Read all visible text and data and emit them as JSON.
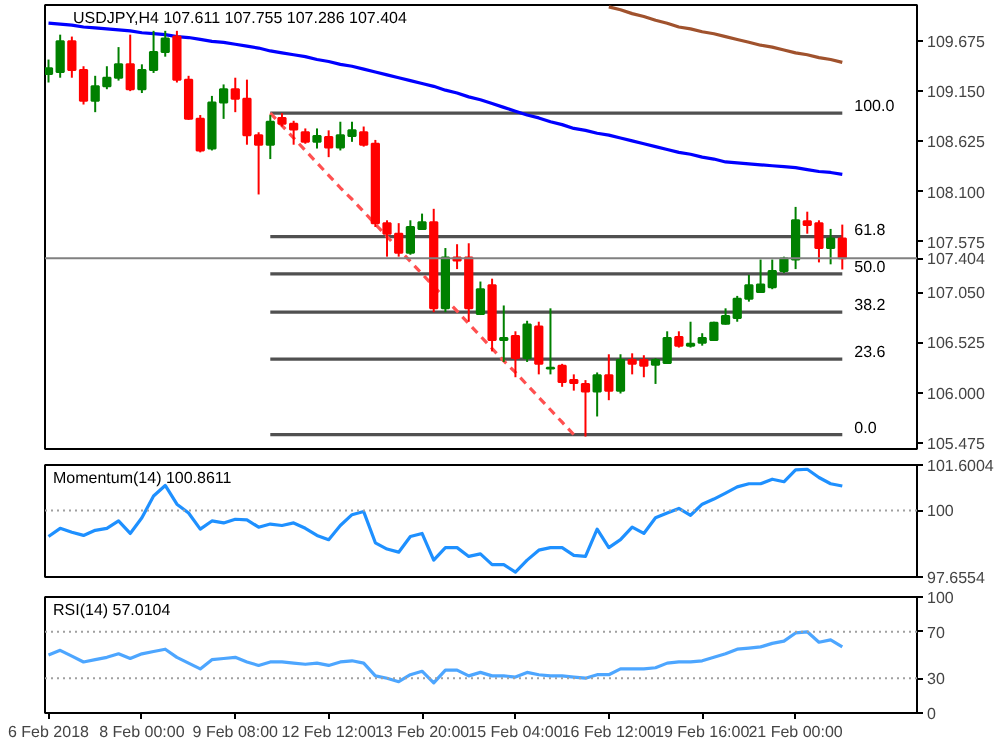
{
  "chart_data": [
    {
      "type": "candlestick",
      "title": "USDJPY,H4  107.611 107.755 107.286 107.404",
      "tick_labels": "y",
      "categories": [
        null,
        null,
        null,
        null,
        null,
        null,
        null,
        null,
        null,
        null,
        null,
        null,
        null,
        null,
        null,
        null,
        null,
        null,
        null,
        null,
        null,
        null,
        null,
        null,
        null,
        null,
        null,
        null,
        null,
        null,
        null,
        null,
        null,
        null,
        null,
        null,
        null,
        null,
        null,
        null,
        null,
        null,
        null,
        null,
        null,
        null,
        null,
        null,
        null,
        null,
        null,
        null,
        null,
        null,
        null,
        null,
        null,
        null,
        null,
        null,
        null,
        null,
        null,
        null,
        null,
        null,
        null,
        null,
        null
      ],
      "ohlc": [
        [
          109.33,
          109.48,
          109.24,
          109.39
        ],
        [
          109.35,
          109.74,
          109.29,
          109.67
        ],
        [
          109.67,
          109.72,
          109.29,
          109.37
        ],
        [
          109.37,
          109.41,
          109.01,
          109.05
        ],
        [
          109.05,
          109.31,
          108.93,
          109.2
        ],
        [
          109.2,
          109.41,
          109.17,
          109.29
        ],
        [
          109.29,
          109.61,
          109.26,
          109.43
        ],
        [
          109.43,
          109.74,
          109.15,
          109.17
        ],
        [
          109.17,
          109.43,
          109.13,
          109.37
        ],
        [
          109.37,
          109.78,
          109.34,
          109.56
        ],
        [
          109.56,
          109.78,
          109.51,
          109.7
        ],
        [
          109.72,
          109.78,
          109.24,
          109.27
        ],
        [
          109.27,
          109.31,
          108.85,
          108.86
        ],
        [
          108.86,
          108.9,
          108.51,
          108.53
        ],
        [
          108.55,
          109.1,
          108.53,
          109.03
        ],
        [
          109.03,
          109.22,
          108.86,
          109.17
        ],
        [
          109.17,
          109.29,
          108.93,
          109.07
        ],
        [
          109.07,
          109.27,
          108.59,
          108.69
        ],
        [
          108.69,
          108.72,
          108.07,
          108.59
        ],
        [
          108.59,
          108.9,
          108.44,
          108.83
        ],
        [
          108.87,
          108.92,
          108.78,
          108.81
        ],
        [
          108.81,
          108.84,
          108.59,
          108.75
        ],
        [
          108.72,
          108.76,
          108.6,
          108.62
        ],
        [
          108.62,
          108.76,
          108.55,
          108.68
        ],
        [
          108.67,
          108.74,
          108.46,
          108.56
        ],
        [
          108.56,
          108.83,
          108.53,
          108.69
        ],
        [
          108.68,
          108.83,
          108.62,
          108.74
        ],
        [
          108.72,
          108.78,
          108.57,
          108.59
        ],
        [
          108.6,
          108.64,
          107.73,
          107.77
        ],
        [
          107.77,
          107.8,
          107.42,
          107.66
        ],
        [
          107.66,
          107.77,
          107.42,
          107.46
        ],
        [
          107.46,
          107.8,
          107.44,
          107.73
        ],
        [
          107.71,
          107.87,
          107.7,
          107.78
        ],
        [
          107.78,
          107.92,
          106.84,
          106.88
        ],
        [
          106.88,
          107.51,
          106.84,
          107.41
        ],
        [
          107.41,
          107.55,
          107.29,
          107.38
        ],
        [
          107.41,
          107.56,
          106.74,
          106.88
        ],
        [
          106.82,
          107.16,
          106.81,
          107.08
        ],
        [
          107.12,
          107.19,
          106.43,
          106.55
        ],
        [
          106.55,
          106.91,
          106.32,
          106.57
        ],
        [
          106.59,
          106.64,
          106.16,
          106.36
        ],
        [
          106.36,
          106.75,
          106.32,
          106.71
        ],
        [
          106.69,
          106.74,
          106.19,
          106.3
        ],
        [
          106.25,
          106.88,
          106.19,
          106.26
        ],
        [
          106.28,
          106.3,
          106.06,
          106.11
        ],
        [
          106.13,
          106.19,
          106.02,
          106.1
        ],
        [
          106.09,
          106.13,
          105.54,
          106.01
        ],
        [
          106.01,
          106.21,
          105.75,
          106.18
        ],
        [
          106.18,
          106.4,
          105.92,
          106.02
        ],
        [
          106.02,
          106.4,
          105.99,
          106.34
        ],
        [
          106.34,
          106.41,
          106.19,
          106.3
        ],
        [
          106.34,
          106.39,
          106.16,
          106.28
        ],
        [
          106.29,
          106.36,
          106.09,
          106.34
        ],
        [
          106.31,
          106.64,
          106.3,
          106.57
        ],
        [
          106.58,
          106.64,
          106.47,
          106.49
        ],
        [
          106.49,
          106.74,
          106.47,
          106.51
        ],
        [
          106.52,
          106.62,
          106.49,
          106.57
        ],
        [
          106.55,
          106.74,
          106.54,
          106.73
        ],
        [
          106.72,
          106.88,
          106.71,
          106.8
        ],
        [
          106.78,
          107.01,
          106.74,
          106.98
        ],
        [
          106.98,
          107.23,
          106.95,
          107.12
        ],
        [
          107.05,
          107.39,
          107.05,
          107.13
        ],
        [
          107.1,
          107.39,
          107.08,
          107.27
        ],
        [
          107.27,
          107.42,
          107.25,
          107.4
        ],
        [
          107.39,
          107.94,
          107.29,
          107.8
        ],
        [
          107.79,
          107.89,
          107.66,
          107.75
        ],
        [
          107.77,
          107.8,
          107.36,
          107.51
        ],
        [
          107.51,
          107.71,
          107.34,
          107.61
        ],
        [
          107.611,
          107.755,
          107.286,
          107.404
        ]
      ],
      "colors": [
        "#008000",
        "#008000",
        "#ff0000",
        "#ff0000",
        "#008000",
        "#008000",
        "#008000",
        "#ff0000",
        "#008000",
        "#008000",
        "#008000",
        "#ff0000",
        "#ff0000",
        "#ff0000",
        "#008000",
        "#008000",
        "#ff0000",
        "#ff0000",
        "#ff0000",
        "#008000",
        "#ff0000",
        "#ff0000",
        "#ff0000",
        "#008000",
        "#ff0000",
        "#008000",
        "#008000",
        "#ff0000",
        "#ff0000",
        "#ff0000",
        "#ff0000",
        "#008000",
        "#008000",
        "#ff0000",
        "#008000",
        "#ff0000",
        "#ff0000",
        "#008000",
        "#ff0000",
        "#008000",
        "#ff0000",
        "#008000",
        "#ff0000",
        "#008000",
        "#ff0000",
        "#ff0000",
        "#ff0000",
        "#008000",
        "#ff0000",
        "#008000",
        "#ff0000",
        "#ff0000",
        "#008000",
        "#008000",
        "#ff0000",
        "#008000",
        "#008000",
        "#008000",
        "#008000",
        "#008000",
        "#008000",
        "#008000",
        "#008000",
        "#008000",
        "#008000",
        "#ff0000",
        "#ff0000",
        "#008000",
        "#ff0000"
      ],
      "series": [
        {
          "type": "line",
          "name": "100.0",
          "color": "#505050",
          "values": [
            null,
            null,
            null,
            null,
            null,
            null,
            null,
            null,
            null,
            null,
            null,
            null,
            null,
            null,
            null,
            null,
            null,
            null,
            null,
            108.92,
            108.92,
            108.92,
            108.92,
            108.92,
            108.92,
            108.92,
            108.92,
            108.92,
            108.92,
            108.92,
            108.92,
            108.92,
            108.92,
            108.92,
            108.92,
            108.92,
            108.92,
            108.92,
            108.92,
            108.92,
            108.92,
            108.92,
            108.92,
            108.92,
            108.92,
            108.92,
            108.92,
            108.92,
            108.92,
            108.92,
            108.92,
            108.92,
            108.92,
            108.92,
            108.92,
            108.92,
            108.92,
            108.92,
            108.92,
            108.92,
            108.92,
            108.92,
            108.92,
            108.92,
            108.92,
            108.92,
            108.92,
            108.92,
            108.92
          ]
        },
        {
          "type": "line",
          "name": "61.8",
          "color": "#505050",
          "values": [
            null,
            null,
            null,
            null,
            null,
            null,
            null,
            null,
            null,
            null,
            null,
            null,
            null,
            null,
            null,
            null,
            null,
            null,
            null,
            107.63,
            107.63,
            107.63,
            107.63,
            107.63,
            107.63,
            107.63,
            107.63,
            107.63,
            107.63,
            107.63,
            107.63,
            107.63,
            107.63,
            107.63,
            107.63,
            107.63,
            107.63,
            107.63,
            107.63,
            107.63,
            107.63,
            107.63,
            107.63,
            107.63,
            107.63,
            107.63,
            107.63,
            107.63,
            107.63,
            107.63,
            107.63,
            107.63,
            107.63,
            107.63,
            107.63,
            107.63,
            107.63,
            107.63,
            107.63,
            107.63,
            107.63,
            107.63,
            107.63,
            107.63,
            107.63,
            107.63,
            107.63,
            107.63,
            107.63
          ]
        },
        {
          "type": "line",
          "name": "50.0",
          "color": "#505050",
          "values": [
            null,
            null,
            null,
            null,
            null,
            null,
            null,
            null,
            null,
            null,
            null,
            null,
            null,
            null,
            null,
            null,
            null,
            null,
            null,
            107.24,
            107.24,
            107.24,
            107.24,
            107.24,
            107.24,
            107.24,
            107.24,
            107.24,
            107.24,
            107.24,
            107.24,
            107.24,
            107.24,
            107.24,
            107.24,
            107.24,
            107.24,
            107.24,
            107.24,
            107.24,
            107.24,
            107.24,
            107.24,
            107.24,
            107.24,
            107.24,
            107.24,
            107.24,
            107.24,
            107.24,
            107.24,
            107.24,
            107.24,
            107.24,
            107.24,
            107.24,
            107.24,
            107.24,
            107.24,
            107.24,
            107.24,
            107.24,
            107.24,
            107.24,
            107.24,
            107.24,
            107.24,
            107.24,
            107.24
          ]
        },
        {
          "type": "line",
          "name": "38.2",
          "color": "#505050",
          "values": [
            null,
            null,
            null,
            null,
            null,
            null,
            null,
            null,
            null,
            null,
            null,
            null,
            null,
            null,
            null,
            null,
            null,
            null,
            null,
            106.84,
            106.84,
            106.84,
            106.84,
            106.84,
            106.84,
            106.84,
            106.84,
            106.84,
            106.84,
            106.84,
            106.84,
            106.84,
            106.84,
            106.84,
            106.84,
            106.84,
            106.84,
            106.84,
            106.84,
            106.84,
            106.84,
            106.84,
            106.84,
            106.84,
            106.84,
            106.84,
            106.84,
            106.84,
            106.84,
            106.84,
            106.84,
            106.84,
            106.84,
            106.84,
            106.84,
            106.84,
            106.84,
            106.84,
            106.84,
            106.84,
            106.84,
            106.84,
            106.84,
            106.84,
            106.84,
            106.84,
            106.84,
            106.84,
            106.84
          ]
        },
        {
          "type": "line",
          "name": "23.6",
          "color": "#505050",
          "values": [
            null,
            null,
            null,
            null,
            null,
            null,
            null,
            null,
            null,
            null,
            null,
            null,
            null,
            null,
            null,
            null,
            null,
            null,
            null,
            106.35,
            106.35,
            106.35,
            106.35,
            106.35,
            106.35,
            106.35,
            106.35,
            106.35,
            106.35,
            106.35,
            106.35,
            106.35,
            106.35,
            106.35,
            106.35,
            106.35,
            106.35,
            106.35,
            106.35,
            106.35,
            106.35,
            106.35,
            106.35,
            106.35,
            106.35,
            106.35,
            106.35,
            106.35,
            106.35,
            106.35,
            106.35,
            106.35,
            106.35,
            106.35,
            106.35,
            106.35,
            106.35,
            106.35,
            106.35,
            106.35,
            106.35,
            106.35,
            106.35,
            106.35,
            106.35,
            106.35,
            106.35,
            106.35,
            106.35
          ]
        },
        {
          "type": "line",
          "name": "0.0",
          "color": "#505050",
          "values": [
            null,
            null,
            null,
            null,
            null,
            null,
            null,
            null,
            null,
            null,
            null,
            null,
            null,
            null,
            null,
            null,
            null,
            null,
            null,
            105.56,
            105.56,
            105.56,
            105.56,
            105.56,
            105.56,
            105.56,
            105.56,
            105.56,
            105.56,
            105.56,
            105.56,
            105.56,
            105.56,
            105.56,
            105.56,
            105.56,
            105.56,
            105.56,
            105.56,
            105.56,
            105.56,
            105.56,
            105.56,
            105.56,
            105.56,
            105.56,
            105.56,
            105.56,
            105.56,
            105.56,
            105.56,
            105.56,
            105.56,
            105.56,
            105.56,
            105.56,
            105.56,
            105.56,
            105.56,
            105.56,
            105.56,
            105.56,
            105.56,
            105.56,
            105.56,
            105.56,
            105.56,
            105.56,
            105.56
          ]
        },
        {
          "type": "line",
          "color": "#0000ff",
          "values": [
            109.86,
            109.85,
            109.84,
            109.82,
            109.81,
            109.8,
            109.79,
            109.78,
            109.76,
            109.75,
            109.74,
            109.72,
            109.71,
            109.69,
            109.67,
            109.66,
            109.64,
            109.62,
            109.6,
            109.57,
            109.55,
            109.53,
            109.51,
            109.48,
            109.46,
            109.43,
            109.41,
            109.38,
            109.35,
            109.32,
            109.29,
            109.26,
            109.23,
            109.2,
            109.16,
            109.13,
            109.09,
            109.06,
            109.02,
            108.98,
            108.94,
            108.9,
            108.87,
            108.83,
            108.8,
            108.76,
            108.74,
            108.71,
            108.69,
            108.66,
            108.63,
            108.6,
            108.57,
            108.54,
            108.51,
            108.49,
            108.46,
            108.44,
            108.41,
            108.4,
            108.39,
            108.38,
            108.37,
            108.36,
            108.35,
            108.33,
            108.31,
            108.3,
            108.28
          ]
        },
        {
          "type": "line",
          "color": "#a0522d",
          "values": [
            null,
            null,
            null,
            null,
            null,
            null,
            null,
            null,
            null,
            null,
            null,
            null,
            null,
            null,
            null,
            null,
            null,
            null,
            null,
            null,
            null,
            null,
            null,
            null,
            null,
            null,
            null,
            null,
            null,
            null,
            null,
            null,
            null,
            null,
            null,
            null,
            null,
            null,
            null,
            null,
            null,
            null,
            null,
            null,
            null,
            null,
            null,
            null,
            110.03,
            110.0,
            109.96,
            109.93,
            109.89,
            109.86,
            109.82,
            109.8,
            109.77,
            109.75,
            109.72,
            109.69,
            109.66,
            109.63,
            109.61,
            109.58,
            109.55,
            109.53,
            109.5,
            109.48,
            109.45
          ]
        },
        {
          "type": "line",
          "color": "#ff5050",
          "line_style": "dashed",
          "values": [
            null,
            null,
            null,
            null,
            null,
            null,
            null,
            null,
            null,
            null,
            null,
            null,
            null,
            null,
            null,
            null,
            null,
            null,
            null,
            108.92,
            108.79,
            108.66,
            108.53,
            108.4,
            108.27,
            108.14,
            108.02,
            107.89,
            107.76,
            107.63,
            107.5,
            107.37,
            107.24,
            107.11,
            106.98,
            106.85,
            106.72,
            106.59,
            106.46,
            106.33,
            106.21,
            106.08,
            105.95,
            105.82,
            105.69,
            105.56,
            null,
            null,
            null,
            null,
            null,
            null,
            null,
            null,
            null,
            null,
            null,
            null,
            null,
            null,
            null,
            null,
            null,
            null,
            null,
            null,
            null,
            null,
            null
          ]
        }
      ],
      "ylim": [
        105.41,
        110.05
      ],
      "yticks": [
        105.475,
        {
          "value": 106.0,
          "label": "106.000"
        },
        106.525,
        {
          "value": 107.05,
          "label": "107.050"
        },
        107.404,
        107.575,
        {
          "value": 108.1,
          "label": "108.100"
        },
        108.625,
        {
          "value": 109.15,
          "label": "109.150"
        },
        109.675
      ],
      "ref_lines": [
        {
          "axis": "y",
          "value": 107.404,
          "color": "#808080"
        }
      ]
    },
    {
      "type": "line",
      "title": "Momentum(14) 100.8611",
      "tick_labels": "y",
      "categories": [
        null,
        null,
        null,
        null,
        null,
        null,
        null,
        null,
        null,
        null,
        null,
        null,
        null,
        null,
        null,
        null,
        null,
        null,
        null,
        null,
        null,
        null,
        null,
        null,
        null,
        null,
        null,
        null,
        null,
        null,
        null,
        null,
        null,
        null,
        null,
        null,
        null,
        null,
        null,
        null,
        null,
        null,
        null,
        null,
        null,
        null,
        null,
        null,
        null,
        null,
        null,
        null,
        null,
        null,
        null,
        null,
        null,
        null,
        null,
        null,
        null,
        null,
        null,
        null,
        null,
        null,
        null,
        null,
        null
      ],
      "series": [
        {
          "color": "#1e90ff",
          "values": [
            99.08,
            99.37,
            99.23,
            99.12,
            99.3,
            99.37,
            99.63,
            99.19,
            99.74,
            100.51,
            100.88,
            100.22,
            99.91,
            99.34,
            99.63,
            99.56,
            99.69,
            99.67,
            99.41,
            99.52,
            99.47,
            99.56,
            99.37,
            99.12,
            98.97,
            99.47,
            99.85,
            99.96,
            98.86,
            98.64,
            98.53,
            99.08,
            99.19,
            98.25,
            98.69,
            98.69,
            98.38,
            98.47,
            98.09,
            98.09,
            97.83,
            98.25,
            98.6,
            98.69,
            98.69,
            98.42,
            98.38,
            99.34,
            98.69,
            98.97,
            99.41,
            99.19,
            99.74,
            99.91,
            100.07,
            99.83,
            100.22,
            100.4,
            100.61,
            100.83,
            100.94,
            100.94,
            101.1,
            101.01,
            101.43,
            101.45,
            101.16,
            100.94,
            100.86
          ]
        }
      ],
      "ylim": [
        97.6554,
        101.6004
      ],
      "yticks": [
        97.6554,
        100,
        101.6004
      ],
      "ref_lines": [
        {
          "axis": "y",
          "value": 100,
          "color": "#a0a0a0",
          "line_style": "dotted"
        }
      ]
    },
    {
      "type": "line",
      "title": "RSI(14) 57.0104",
      "categories": [
        "6 Feb 2018",
        null,
        null,
        null,
        null,
        null,
        null,
        null,
        "8 Feb 00:00",
        null,
        null,
        null,
        null,
        null,
        null,
        null,
        "9 Feb 08:00",
        null,
        null,
        null,
        null,
        null,
        null,
        null,
        "12 Feb 12:00",
        null,
        null,
        null,
        null,
        null,
        null,
        null,
        "13 Feb 20:00",
        null,
        null,
        null,
        null,
        null,
        null,
        null,
        "15 Feb 04:00",
        null,
        null,
        null,
        null,
        null,
        null,
        null,
        "16 Feb 12:00",
        null,
        null,
        null,
        null,
        null,
        null,
        null,
        "19 Feb 16:00",
        null,
        null,
        null,
        null,
        null,
        null,
        null,
        "21 Feb 00:00",
        null,
        null,
        null,
        null
      ],
      "series": [
        {
          "color": "#4da6ff",
          "values": [
            50,
            54,
            49,
            44,
            46,
            48,
            51,
            47,
            51,
            53,
            55,
            48,
            43,
            38,
            46,
            47,
            48,
            44,
            41,
            44,
            44,
            43,
            42,
            43,
            41,
            44,
            45,
            43,
            32,
            30,
            27,
            33,
            36,
            26,
            37,
            37,
            32,
            35,
            32,
            32,
            31,
            35,
            33,
            32,
            32,
            31,
            30,
            33,
            33,
            38,
            38,
            38,
            39,
            43,
            44,
            44,
            45,
            48,
            51,
            55,
            56,
            57,
            60,
            62,
            69,
            70,
            61,
            63,
            57
          ]
        }
      ],
      "ylim": [
        0,
        100
      ],
      "yticks": [
        0,
        30,
        70,
        100
      ],
      "ref_lines": [
        {
          "axis": "y",
          "value": 30,
          "color": "#a0a0a0",
          "line_style": "dotted"
        },
        {
          "axis": "y",
          "value": 70,
          "color": "#a0a0a0",
          "line_style": "dotted"
        }
      ]
    }
  ]
}
